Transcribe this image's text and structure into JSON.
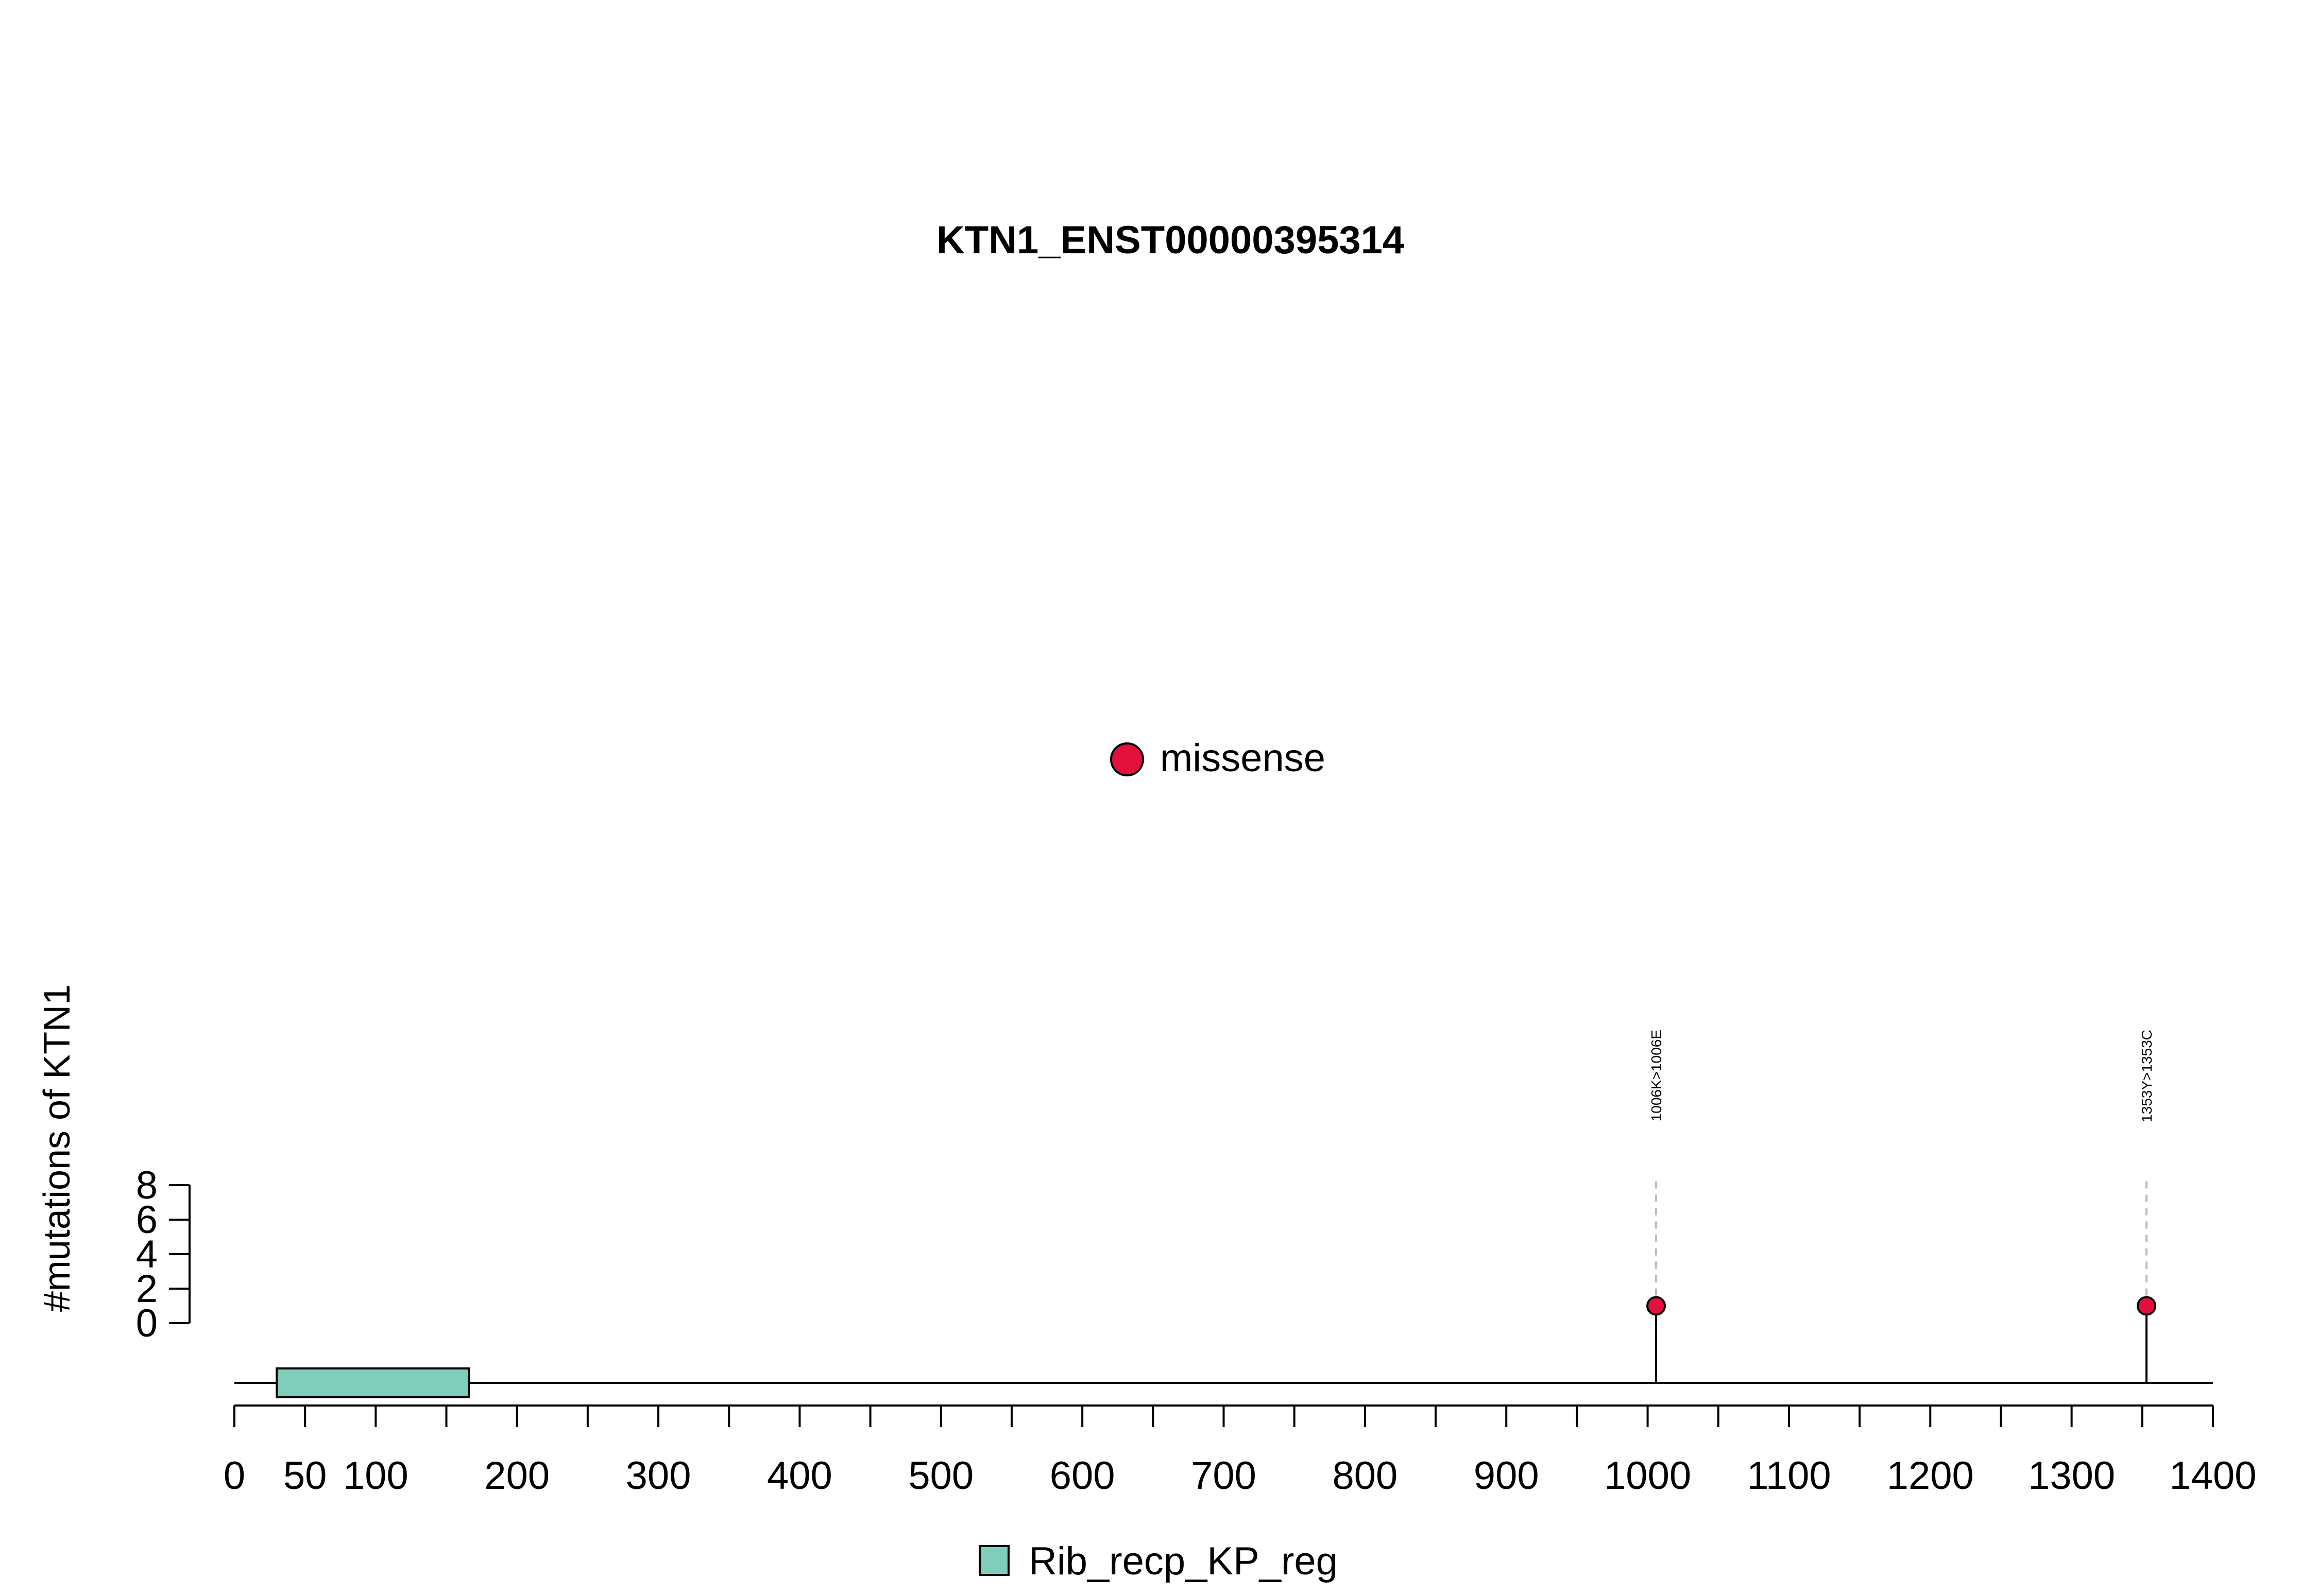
{
  "chart_data": {
    "type": "lollipop",
    "title": "KTN1_ENST00000395314",
    "ylabel": "#mutations of KTN1",
    "xlim": [
      0,
      1400
    ],
    "x_ticks_major": [
      0,
      50,
      100,
      200,
      300,
      400,
      500,
      600,
      700,
      800,
      900,
      1000,
      1100,
      1200,
      1300,
      1400
    ],
    "x_ticks_minor": [
      150,
      250,
      350,
      450,
      550,
      650,
      750,
      850,
      950,
      1050,
      1150,
      1250,
      1350
    ],
    "y_ticks": [
      0,
      2,
      4,
      6,
      8
    ],
    "ylim": [
      0,
      8
    ],
    "legend_top": {
      "label": "missense",
      "color": "#E3103E"
    },
    "mutations": [
      {
        "position": 1006,
        "count": 1,
        "label": "1006K>1006E",
        "type": "missense"
      },
      {
        "position": 1353,
        "count": 1,
        "label": "1353Y>1353C",
        "type": "missense"
      }
    ],
    "domains": [
      {
        "name": "Rib_recp_KP_reg",
        "start": 30,
        "end": 166,
        "color": "#7FCDBB"
      }
    ],
    "legend_bottom": {
      "label": "Rib_recp_KP_reg",
      "color": "#7FCDBB"
    }
  }
}
